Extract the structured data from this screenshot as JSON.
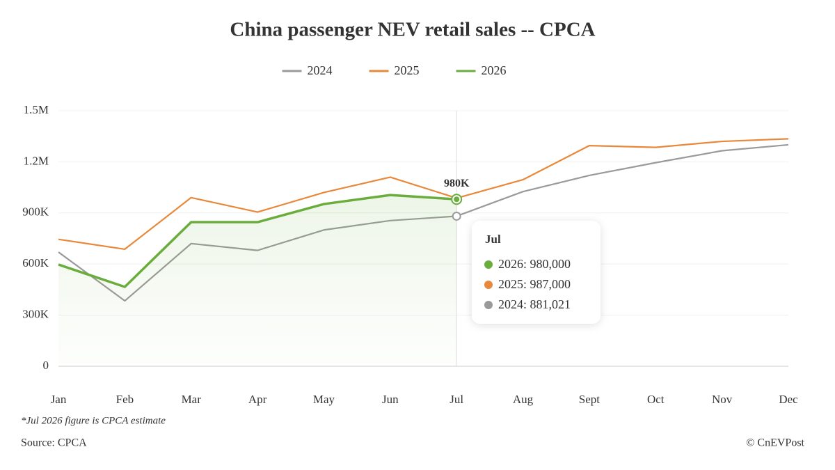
{
  "chart_data": {
    "type": "line",
    "title": "China passenger NEV retail sales -- CPCA",
    "categories": [
      "Jan",
      "Feb",
      "Mar",
      "Apr",
      "May",
      "Jun",
      "Jul",
      "Aug",
      "Sept",
      "Oct",
      "Nov",
      "Dec"
    ],
    "series": [
      {
        "name": "2024",
        "color": "#9a9a9a",
        "values": [
          670000,
          384000,
          720000,
          680000,
          800000,
          855000,
          881021,
          1025000,
          1120000,
          1195000,
          1265000,
          1300000
        ]
      },
      {
        "name": "2025",
        "color": "#e8883a",
        "values": [
          745000,
          687000,
          990000,
          905000,
          1020000,
          1110000,
          987000,
          1095000,
          1295000,
          1285000,
          1320000,
          1335000
        ]
      },
      {
        "name": "2026",
        "color": "#6aad3d",
        "values": [
          597000,
          466000,
          846000,
          846000,
          952000,
          1005000,
          980000,
          null,
          null,
          null,
          null,
          null
        ],
        "value_labels": [
          null,
          null,
          null,
          null,
          null,
          null,
          "980K",
          null,
          null,
          null,
          null,
          null
        ]
      }
    ],
    "ylim": [
      0,
      1500000
    ],
    "yticks": [
      0,
      {
        "value": 300000,
        "label": "300K"
      },
      {
        "value": 600000,
        "label": "600K"
      },
      {
        "value": 900000,
        "label": "900K"
      },
      {
        "value": 1200000,
        "label": "1.2M"
      },
      {
        "value": 1500000,
        "label": "1.5M"
      }
    ],
    "grid": true,
    "legend": "top",
    "tooltip": {
      "title": "Jul",
      "items": [
        "2026: 980,000",
        "2025: 987,000",
        "2024: 881,021"
      ]
    },
    "footnote": "*Jul 2026 figure is CPCA estimate",
    "source": "Source: CPCA",
    "credit": "© CnEVPost"
  }
}
